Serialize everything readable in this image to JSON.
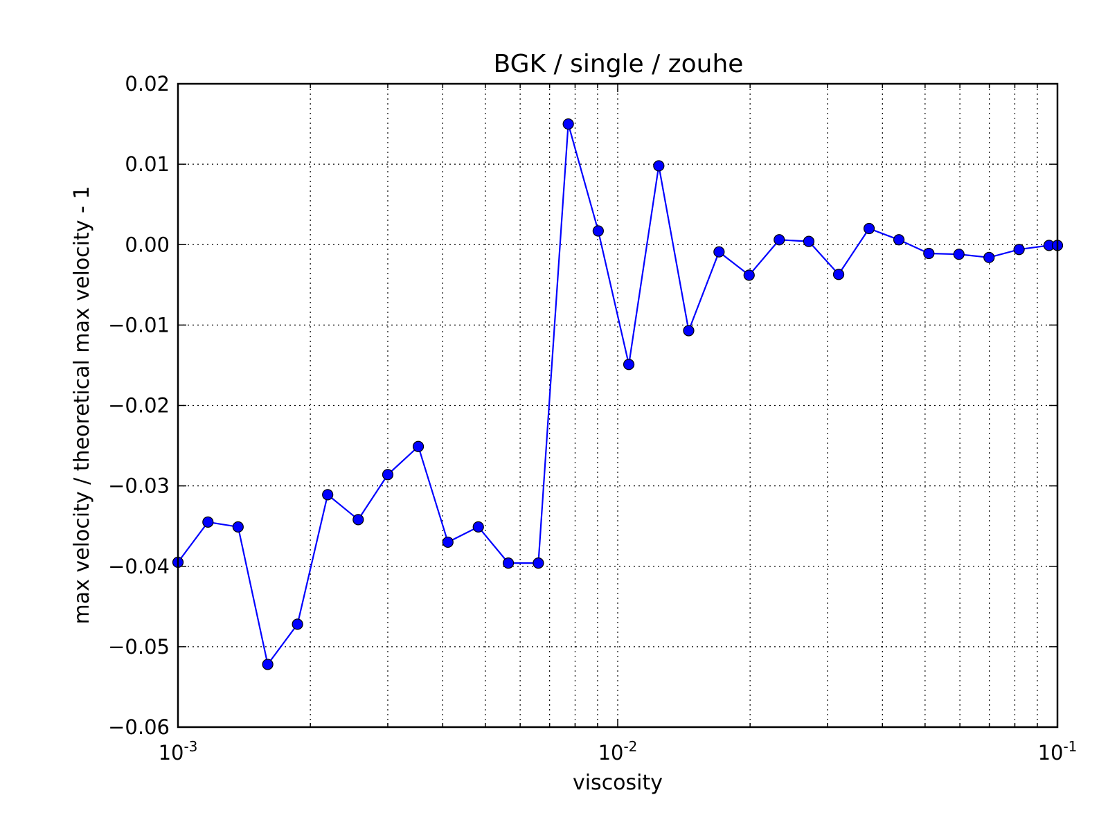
{
  "chart_data": {
    "type": "line",
    "title": "BGK / single / zouhe",
    "xlabel": "viscosity",
    "ylabel": "max velocity / theoretical max velocity - 1",
    "xscale": "log",
    "xlim": [
      0.001,
      0.1
    ],
    "ylim": [
      -0.06,
      0.02
    ],
    "grid": true,
    "legend": "none",
    "x_ticks": [
      {
        "value": 0.001,
        "base": "10",
        "exp": "-3"
      },
      {
        "value": 0.01,
        "base": "10",
        "exp": "-2"
      },
      {
        "value": 0.1,
        "base": "10",
        "exp": "-1"
      }
    ],
    "y_ticks": [
      {
        "value": 0.02,
        "label": "0.02"
      },
      {
        "value": 0.01,
        "label": "0.01"
      },
      {
        "value": 0.0,
        "label": "0.00"
      },
      {
        "value": -0.01,
        "label": "−0.01"
      },
      {
        "value": -0.02,
        "label": "−0.02"
      },
      {
        "value": -0.03,
        "label": "−0.03"
      },
      {
        "value": -0.04,
        "label": "−0.04"
      },
      {
        "value": -0.05,
        "label": "−0.05"
      },
      {
        "value": -0.06,
        "label": "−0.06"
      }
    ],
    "series": [
      {
        "color": "#0000ff",
        "marker": "circle",
        "x": [
          0.001,
          0.00117,
          0.00137,
          0.0016,
          0.00187,
          0.00219,
          0.00257,
          0.003,
          0.00352,
          0.00411,
          0.00482,
          0.00564,
          0.0066,
          0.00772,
          0.00903,
          0.0106,
          0.0124,
          0.0145,
          0.017,
          0.0199,
          0.0233,
          0.0272,
          0.0318,
          0.0373,
          0.0436,
          0.051,
          0.0597,
          0.0699,
          0.0818,
          0.0957,
          0.1
        ],
        "y": [
          -0.0395,
          -0.0345,
          -0.0351,
          -0.0522,
          -0.0472,
          -0.0311,
          -0.0342,
          -0.0286,
          -0.0251,
          -0.037,
          -0.0351,
          -0.0396,
          -0.0396,
          0.015,
          0.0017,
          -0.0149,
          0.0098,
          -0.0107,
          -0.0009,
          -0.0038,
          0.0006,
          0.0004,
          -0.0037,
          0.002,
          0.0006,
          -0.0011,
          -0.0012,
          -0.0016,
          -0.0006,
          -0.0001,
          -0.0001
        ]
      }
    ]
  }
}
